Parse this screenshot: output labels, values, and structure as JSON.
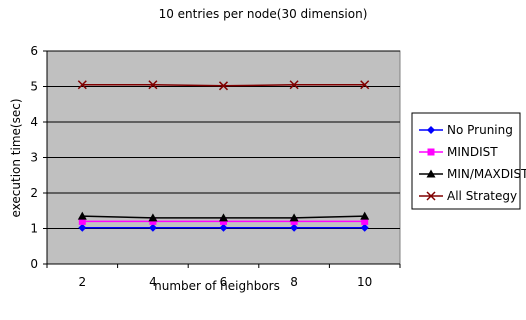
{
  "chart_data": {
    "type": "line",
    "title": "10 entries per node(30 dimension)",
    "xlabel": "number of neighbors",
    "ylabel": "execution time(sec)",
    "categories": [
      "2",
      "4",
      "6",
      "8",
      "10"
    ],
    "ylim": [
      0,
      6
    ],
    "yticks": [
      "0",
      "1",
      "2",
      "3",
      "4",
      "5",
      "6"
    ],
    "grid": "horizontal",
    "plot_background": "#c0c0c0",
    "legend_position": "right",
    "series": [
      {
        "name": "No Pruning",
        "values": [
          1.02,
          1.02,
          1.02,
          1.02,
          1.02
        ],
        "color": "#0000ff",
        "marker": "diamond"
      },
      {
        "name": "MINDIST",
        "values": [
          1.2,
          1.2,
          1.2,
          1.2,
          1.2
        ],
        "color": "#ff00ff",
        "marker": "square"
      },
      {
        "name": "MIN/MAXDIST",
        "values": [
          1.35,
          1.3,
          1.3,
          1.3,
          1.35
        ],
        "color": "#000000",
        "marker": "triangle"
      },
      {
        "name": "All Strategy",
        "values": [
          5.05,
          5.05,
          5.02,
          5.05,
          5.05
        ],
        "color": "#800000",
        "marker": "x"
      }
    ]
  }
}
